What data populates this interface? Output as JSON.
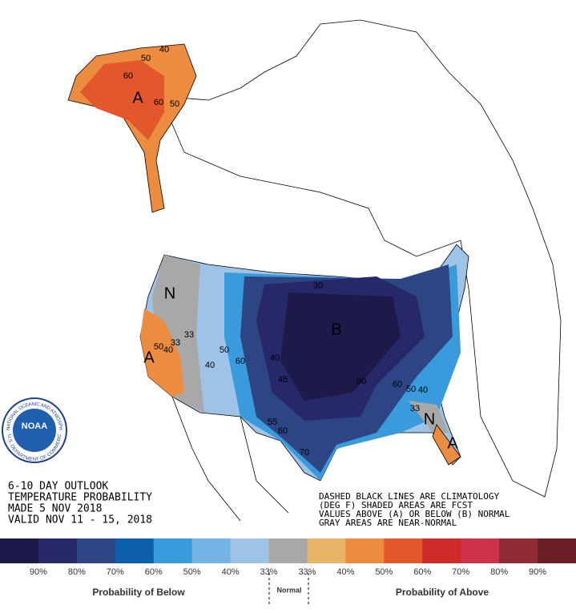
{
  "header": {
    "lines": [
      "6-10 DAY OUTLOOK",
      "TEMPERATURE PROBABILITY",
      "MADE  5 NOV 2018",
      "VALID  NOV 11 - 15, 2018"
    ]
  },
  "notes": [
    "DASHED BLACK LINES ARE CLIMATOLOGY",
    "(DEG F) SHADED AREAS ARE FCST",
    "VALUES ABOVE (A) OR BELOW (B) NORMAL",
    "GRAY AREAS ARE NEAR-NORMAL"
  ],
  "logo": {
    "name": "NOAA",
    "top": "NATIONAL OCEANIC AND ATMOSPHERIC ADMINISTRATION",
    "bottom": "U.S. DEPARTMENT OF COMMERCE"
  },
  "map": {
    "labels": [
      "40",
      "50",
      "60",
      "A",
      "60",
      "50",
      "N",
      "A",
      "50",
      "40",
      "33",
      "33",
      "50",
      "40",
      "60",
      "B",
      "30",
      "40",
      "45",
      "55",
      "60",
      "70",
      "80",
      "60",
      "50",
      "40",
      "33",
      "N",
      "A"
    ]
  },
  "legend": {
    "colors": [
      "#1d1a4a",
      "#27286a",
      "#2d4585",
      "#0b5fab",
      "#399bdc",
      "#74b3e6",
      "#9fc3e7",
      "#a8a8a8",
      "#e8b468",
      "#ec8c40",
      "#e2572b",
      "#cf2b28",
      "#ce3149",
      "#8e2a33",
      "#6a1f24"
    ],
    "labels": [
      "90%",
      "80%",
      "70%",
      "60%",
      "50%",
      "40%",
      "33%",
      "33%",
      "40%",
      "50%",
      "60%",
      "70%",
      "80%",
      "90%"
    ],
    "below": "Probability of Below",
    "normal": "Normal",
    "above": "Probability of Above"
  }
}
